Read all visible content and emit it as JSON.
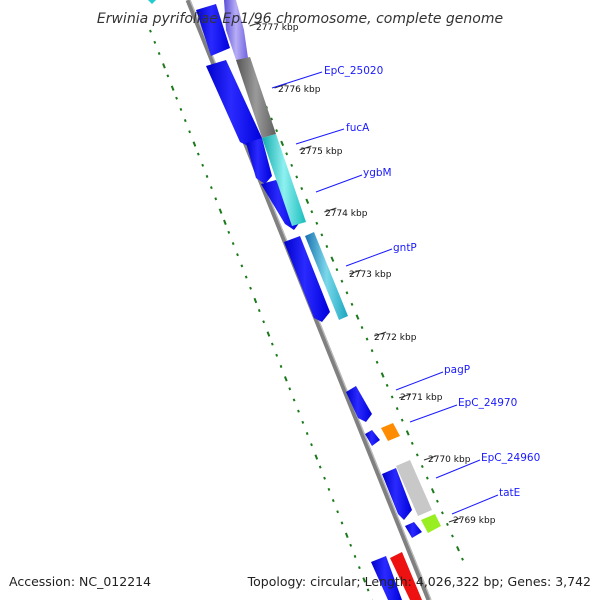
{
  "title": "Erwinia pyrifoliae Ep1/96 chromosome, complete genome",
  "footer": {
    "accession": "Accession: NC_012214",
    "summary": "Topology: circular; Length: 4,026,322 bp; Genes: 3,742"
  },
  "ticks": [
    "2777 kbp",
    "2776 kbp",
    "2775 kbp",
    "2774 kbp",
    "2773 kbp",
    "2772 kbp",
    "2771 kbp",
    "2770 kbp",
    "2769 kbp"
  ],
  "genes": [
    "EpC_25020",
    "fucA",
    "ygbM",
    "gntP",
    "pagP",
    "EpC_24970",
    "EpC_24960",
    "tatE"
  ],
  "colors": {
    "cds_strand": "#0000ee",
    "backbone": "#808080",
    "gc_dots": "#1a7a1a",
    "label_lines": "#1a1aff",
    "purple": "#7b68ee",
    "gray": "#707070",
    "cyan": "#22cccc",
    "orange": "#ff8c00",
    "light_gray": "#c8c8c8",
    "lime": "#99ee22",
    "red": "#ee1111"
  }
}
